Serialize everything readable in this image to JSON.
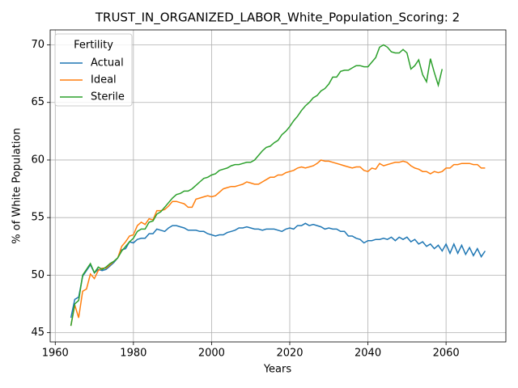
{
  "chart_data": {
    "type": "line",
    "title": "TRUST_IN_ORGANIZED_LABOR_White_Population_Scoring: 2",
    "x_label": "Years",
    "y_label": "% of White Population",
    "legend_title": "Fertility",
    "legend": "upper left",
    "grid": true,
    "xlim": [
      1958.7,
      2075.3
    ],
    "ylim": [
      44.2,
      71.3
    ],
    "xticks": [
      1960,
      1980,
      2000,
      2020,
      2040,
      2060
    ],
    "yticks": [
      45,
      50,
      55,
      60,
      65,
      70
    ],
    "x": [
      1964,
      1965,
      1966,
      1967,
      1968,
      1969,
      1970,
      1971,
      1972,
      1973,
      1974,
      1975,
      1976,
      1977,
      1978,
      1979,
      1980,
      1981,
      1982,
      1983,
      1984,
      1985,
      1986,
      1987,
      1988,
      1989,
      1990,
      1991,
      1992,
      1993,
      1994,
      1995,
      1996,
      1997,
      1998,
      1999,
      2000,
      2001,
      2002,
      2003,
      2004,
      2005,
      2006,
      2007,
      2008,
      2009,
      2010,
      2011,
      2012,
      2013,
      2014,
      2015,
      2016,
      2017,
      2018,
      2019,
      2020,
      2021,
      2022,
      2023,
      2024,
      2025,
      2026,
      2027,
      2028,
      2029,
      2030,
      2031,
      2032,
      2033,
      2034,
      2035,
      2036,
      2037,
      2038,
      2039,
      2040,
      2041,
      2042,
      2043,
      2044,
      2045,
      2046,
      2047,
      2048,
      2049,
      2050,
      2051,
      2052,
      2053,
      2054,
      2055,
      2056,
      2057,
      2058,
      2059,
      2060,
      2061,
      2062,
      2063,
      2064,
      2065,
      2066,
      2067,
      2068,
      2069,
      2070
    ],
    "series": [
      {
        "name": "Actual",
        "color": "#1f77b4",
        "values": [
          46.3,
          47.9,
          48.1,
          49.9,
          50.4,
          50.9,
          50.2,
          50.5,
          50.4,
          50.5,
          50.8,
          51.1,
          51.5,
          52.2,
          52.3,
          52.9,
          52.8,
          53.1,
          53.2,
          53.2,
          53.6,
          53.6,
          54.0,
          53.9,
          53.8,
          54.1,
          54.3,
          54.3,
          54.2,
          54.1,
          53.9,
          53.9,
          53.9,
          53.8,
          53.8,
          53.6,
          53.5,
          53.4,
          53.5,
          53.5,
          53.7,
          53.8,
          53.9,
          54.1,
          54.1,
          54.2,
          54.1,
          54.0,
          54.0,
          53.9,
          54.0,
          54.0,
          54.0,
          53.9,
          53.8,
          54.0,
          54.1,
          54.0,
          54.3,
          54.3,
          54.5,
          54.3,
          54.4,
          54.3,
          54.2,
          54.0,
          54.1,
          54.0,
          54.0,
          53.8,
          53.8,
          53.4,
          53.4,
          53.2,
          53.1,
          52.8,
          53.0,
          53.0,
          53.1,
          53.1,
          53.2,
          53.1,
          53.3,
          53.0,
          53.3,
          53.1,
          53.3,
          52.9,
          53.1,
          52.7,
          52.9,
          52.5,
          52.7,
          52.3,
          52.6,
          52.1,
          52.7,
          51.9,
          52.7,
          51.9,
          52.6,
          51.8,
          52.4,
          51.7,
          52.3,
          51.6,
          52.1
        ]
      },
      {
        "name": "Ideal",
        "color": "#ff7f0e",
        "values": [
          45.6,
          47.4,
          46.3,
          48.6,
          48.8,
          50.1,
          49.7,
          50.4,
          50.6,
          50.6,
          50.9,
          51.2,
          51.5,
          52.5,
          52.9,
          53.4,
          53.5,
          54.3,
          54.6,
          54.4,
          54.9,
          54.8,
          55.6,
          55.6,
          55.7,
          56.0,
          56.4,
          56.4,
          56.3,
          56.2,
          55.9,
          55.9,
          56.6,
          56.7,
          56.8,
          56.9,
          56.8,
          56.9,
          57.2,
          57.5,
          57.6,
          57.7,
          57.7,
          57.8,
          57.9,
          58.1,
          58.0,
          57.9,
          57.9,
          58.1,
          58.3,
          58.5,
          58.5,
          58.7,
          58.7,
          58.9,
          59.0,
          59.1,
          59.3,
          59.4,
          59.3,
          59.4,
          59.5,
          59.7,
          60.0,
          59.9,
          59.9,
          59.8,
          59.7,
          59.6,
          59.5,
          59.4,
          59.3,
          59.4,
          59.4,
          59.1,
          59.0,
          59.3,
          59.2,
          59.7,
          59.5,
          59.6,
          59.7,
          59.8,
          59.8,
          59.9,
          59.8,
          59.5,
          59.3,
          59.2,
          59.0,
          59.0,
          58.8,
          59.0,
          58.9,
          59.0,
          59.3,
          59.3,
          59.6,
          59.6,
          59.7,
          59.7,
          59.7,
          59.6,
          59.6,
          59.3,
          59.3
        ]
      },
      {
        "name": "Sterile",
        "color": "#2ca02c",
        "values": [
          45.6,
          47.5,
          47.8,
          50.0,
          50.5,
          51.0,
          50.2,
          50.7,
          50.5,
          50.7,
          51.0,
          51.2,
          51.5,
          52.1,
          52.5,
          52.9,
          53.2,
          53.8,
          54.0,
          54.0,
          54.6,
          54.7,
          55.3,
          55.5,
          55.9,
          56.3,
          56.7,
          57.0,
          57.1,
          57.3,
          57.3,
          57.5,
          57.8,
          58.1,
          58.4,
          58.5,
          58.7,
          58.8,
          59.1,
          59.2,
          59.3,
          59.5,
          59.6,
          59.6,
          59.7,
          59.8,
          59.8,
          60.0,
          60.4,
          60.8,
          61.1,
          61.2,
          61.5,
          61.7,
          62.2,
          62.5,
          62.9,
          63.4,
          63.8,
          64.3,
          64.7,
          65.0,
          65.4,
          65.6,
          66.0,
          66.2,
          66.6,
          67.2,
          67.2,
          67.7,
          67.8,
          67.8,
          68.0,
          68.2,
          68.2,
          68.1,
          68.1,
          68.5,
          68.9,
          69.8,
          70.0,
          69.8,
          69.4,
          69.3,
          69.3,
          69.6,
          69.3,
          67.9,
          68.2,
          68.7,
          67.4,
          66.8,
          68.8,
          67.6,
          66.5,
          67.9,
          null,
          null,
          null,
          null,
          null,
          null,
          null,
          null,
          null,
          null,
          null
        ]
      }
    ]
  }
}
